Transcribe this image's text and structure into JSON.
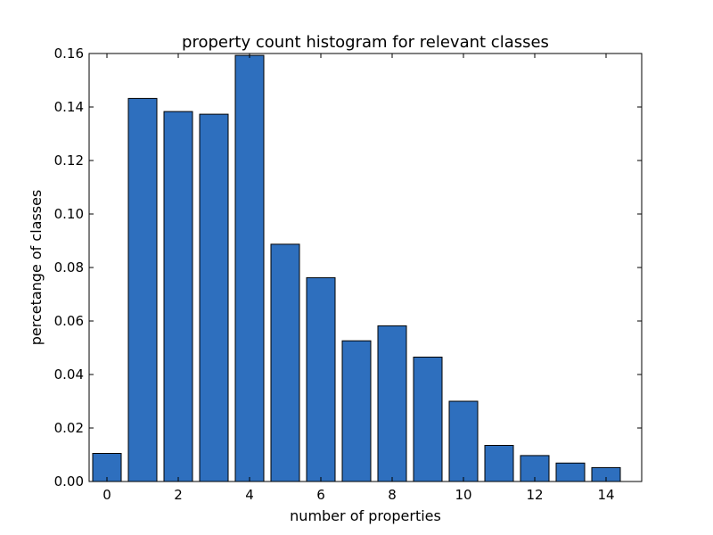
{
  "chart_data": {
    "type": "bar",
    "title": "property count histogram for relevant classes",
    "xlabel": "number of properties",
    "ylabel": "percetange of classes",
    "x": [
      0,
      1,
      2,
      3,
      4,
      5,
      6,
      7,
      8,
      9,
      10,
      11,
      12,
      13,
      14
    ],
    "values": [
      0.0105,
      0.1432,
      0.1383,
      0.1373,
      0.1593,
      0.0887,
      0.0762,
      0.0526,
      0.0582,
      0.0465,
      0.03,
      0.0135,
      0.0097,
      0.0069,
      0.0052
    ],
    "xlim": [
      -0.5,
      15
    ],
    "ylim": [
      0,
      0.16
    ],
    "xticks": [
      0,
      2,
      4,
      6,
      8,
      10,
      12,
      14
    ],
    "yticks": [
      0.0,
      0.02,
      0.04,
      0.06,
      0.08,
      0.1,
      0.12,
      0.14,
      0.16
    ],
    "ytick_labels": [
      "0.00",
      "0.02",
      "0.04",
      "0.06",
      "0.08",
      "0.10",
      "0.12",
      "0.14",
      "0.16"
    ],
    "bar_color": "#2e6fbe",
    "edge_color": "#000000",
    "grid": false
  }
}
